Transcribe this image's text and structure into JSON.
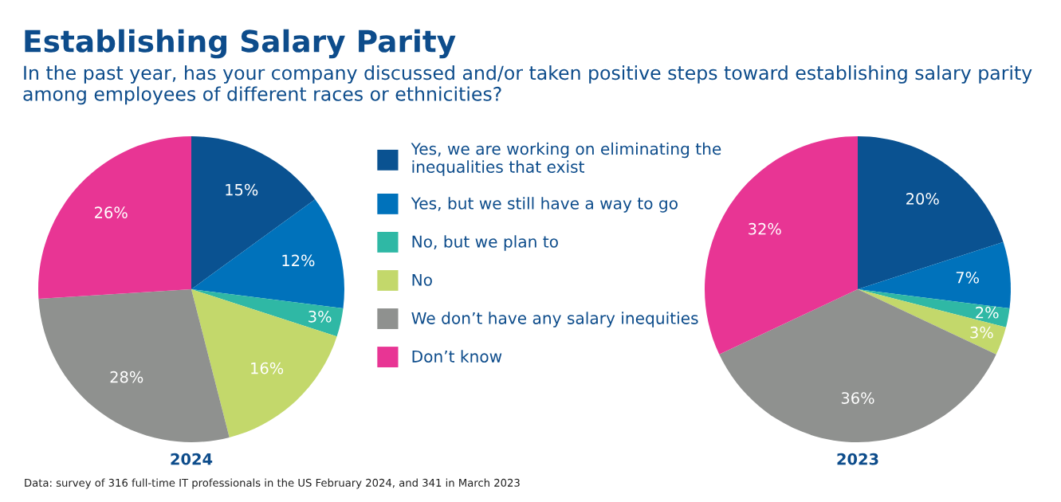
{
  "chart_data": [
    {
      "type": "pie",
      "title": "Establishing Salary Parity",
      "subtitle": "In the past year, has your company discussed and/or taken positive steps toward establishing salary parity among employees of different races or ethnicities?",
      "xlabel": "2024",
      "categories": [
        "Yes, we are working on eliminating the inequalities that exist",
        "Yes, but we still have a way to go",
        "No, but we plan to",
        "No",
        "We don’t have any salary inequities",
        "Don’t know"
      ],
      "values": [
        15,
        12,
        3,
        16,
        28,
        26
      ],
      "value_labels": [
        "15%",
        "12%",
        "3%",
        "16%",
        "28%",
        "26%"
      ],
      "colors": [
        "#0a5291",
        "#0072bb",
        "#2fb8a5",
        "#c3d86b",
        "#8f918f",
        "#e83594"
      ],
      "legend": "right",
      "annotations": [
        "Data: survey of 316 full-time IT professionals in the US February 2024, and 341 in March 2023"
      ]
    },
    {
      "type": "pie",
      "xlabel": "2023",
      "values": [
        20,
        7,
        2,
        3,
        36,
        32
      ],
      "value_labels": [
        "20%",
        "7%",
        "2%",
        "3%",
        "36%",
        "32%"
      ],
      "colors": [
        "#0a5291",
        "#0072bb",
        "#2fb8a5",
        "#c3d86b",
        "#8f918f",
        "#e83594"
      ]
    }
  ]
}
